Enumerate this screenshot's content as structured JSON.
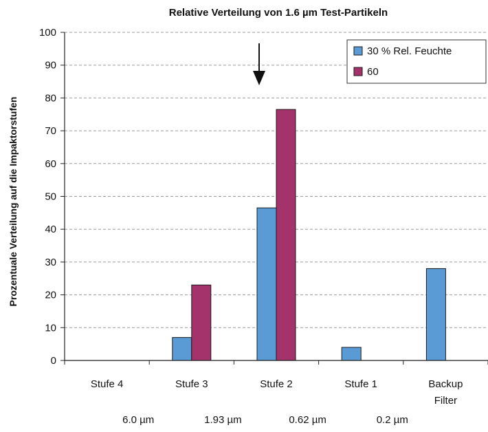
{
  "chart_data": {
    "type": "bar",
    "title": "Relative Verteilung von 1.6 µm Test-Partikeln",
    "ylabel": "Prozentuale Verteilung auf die Impaktorstufen",
    "xlabel": "",
    "ylim": [
      0,
      100
    ],
    "yticks": [
      0,
      10,
      20,
      30,
      40,
      50,
      60,
      70,
      80,
      90,
      100
    ],
    "categories": [
      [
        "Stufe 4"
      ],
      [
        "Stufe 3"
      ],
      [
        "Stufe 2"
      ],
      [
        "Stufe 1"
      ],
      [
        "Backup",
        "Filter"
      ]
    ],
    "cut_sizes": [
      "6.0 µm",
      "1.93 µm",
      "0.62 µm",
      "0.2 µm"
    ],
    "series": [
      {
        "name": "30 % Rel. Feuchte",
        "color": "#5b9bd5",
        "values": [
          0,
          7,
          46.5,
          4,
          28
        ]
      },
      {
        "name": "60",
        "color": "#a3336a",
        "values": [
          0,
          23,
          76.5,
          0,
          0
        ]
      }
    ],
    "highlight_category": "Stufe 2",
    "grid": "dashed horizontal",
    "legend_position": "top-right"
  }
}
